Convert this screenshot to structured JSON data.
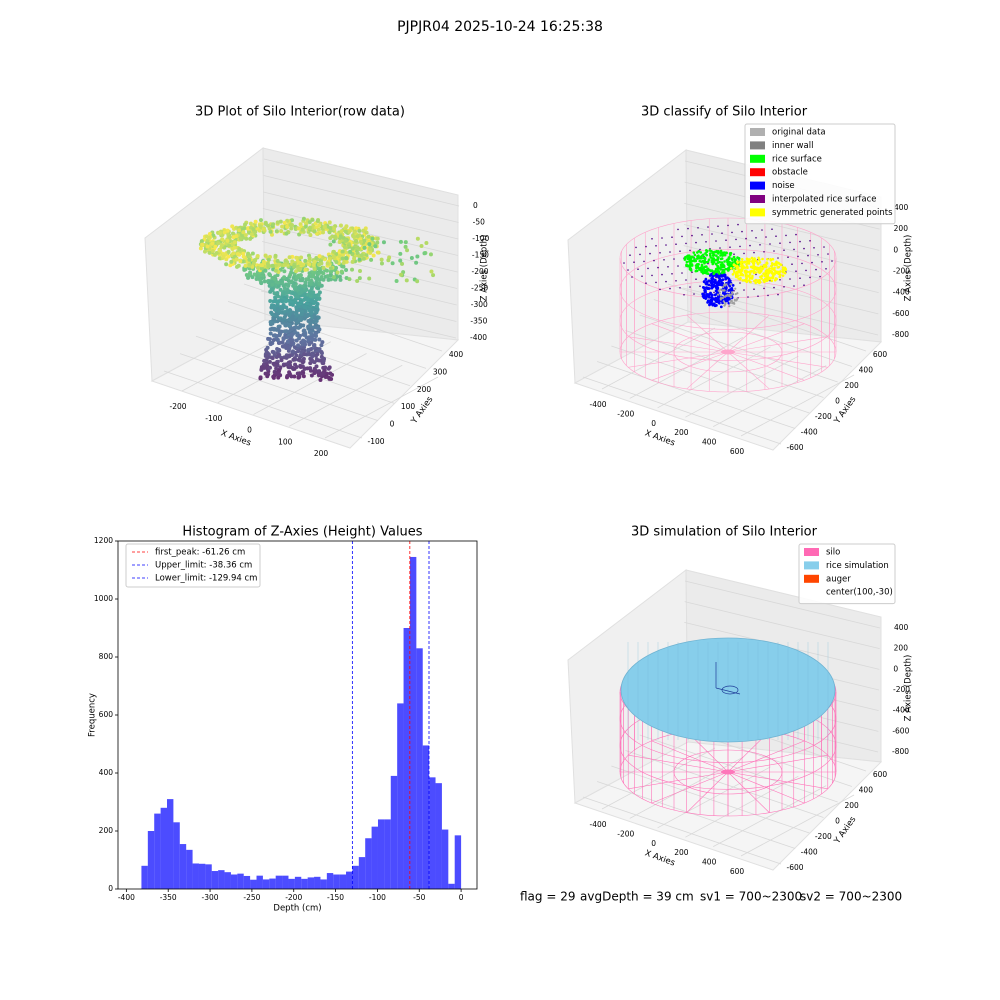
{
  "title": "PJPJR04 2025-10-24 16:25:38",
  "chart_data": [
    {
      "type": "scatter3d",
      "title": "3D Plot of Silo Interior(row data)",
      "xlabel": "X Axies",
      "ylabel": "Y Axies",
      "zlabel": "Z Axies (Depth)",
      "xticks": [
        -200,
        -100,
        0,
        100,
        200
      ],
      "yticks": [
        -100,
        0,
        100,
        200,
        300,
        400
      ],
      "zticks": [
        0,
        -50,
        -100,
        -150,
        -200,
        -250,
        -300,
        -350,
        -400
      ]
    },
    {
      "type": "scatter3d",
      "title": "3D classify of Silo Interior",
      "xlabel": "X Axies",
      "ylabel": "Y Axies",
      "zlabel": "Z Axies (Depth)",
      "xticks": [
        -400,
        -200,
        0,
        200,
        400,
        600
      ],
      "yticks": [
        -600,
        -400,
        -200,
        0,
        200,
        400,
        600
      ],
      "zticks": [
        400,
        200,
        0,
        -200,
        -400,
        -600,
        -800
      ],
      "legend": [
        {
          "label": "original data",
          "color": "#b0b0b0"
        },
        {
          "label": "inner wall",
          "color": "#808080"
        },
        {
          "label": "rice surface",
          "color": "#00ff00"
        },
        {
          "label": "obstacle",
          "color": "#ff0000"
        },
        {
          "label": "noise",
          "color": "#0000ff"
        },
        {
          "label": "interpolated rice surface",
          "color": "#800080"
        },
        {
          "label": "symmetric generated points",
          "color": "#ffff00"
        }
      ]
    },
    {
      "type": "histogram",
      "title": "Histogram of Z-Axies (Height) Values",
      "xlabel": "Depth (cm)",
      "ylabel": "Frequency",
      "color": "#0000ff",
      "bins": [
        -382,
        -374.36,
        -366.72,
        -359.08,
        -351.44,
        -343.8,
        -336.16,
        -328.52,
        -320.88,
        -313.24,
        -305.6,
        -297.96,
        -290.32,
        -282.68,
        -275.04,
        -267.4,
        -259.76,
        -252.12,
        -244.48,
        -236.84,
        -229.2,
        -221.56,
        -213.92,
        -206.28,
        -198.64,
        -191,
        -183.36,
        -175.72,
        -168.08,
        -160.44,
        -152.8,
        -145.16,
        -137.52,
        -129.88,
        -122.24,
        -114.6,
        -106.96,
        -99.32,
        -91.68,
        -84.04,
        -76.4,
        -68.76,
        -61.12,
        -53.48,
        -45.84,
        -38.2,
        -30.56,
        -22.92,
        -15.28,
        -7.64,
        0
      ],
      "counts": [
        80,
        200,
        260,
        280,
        310,
        230,
        155,
        135,
        88,
        87,
        85,
        62,
        65,
        58,
        50,
        53,
        45,
        32,
        46,
        33,
        36,
        46,
        46,
        35,
        42,
        35,
        40,
        42,
        33,
        55,
        50,
        50,
        60,
        80,
        110,
        175,
        215,
        240,
        240,
        390,
        640,
        900,
        1145,
        830,
        495,
        385,
        365,
        205,
        18,
        185
      ],
      "xlim": [
        -410,
        19
      ],
      "ylim": [
        0,
        1200
      ],
      "xticks": [
        -400,
        -350,
        -300,
        -250,
        -200,
        -150,
        -100,
        -50,
        0
      ],
      "yticks": [
        0,
        200,
        400,
        600,
        800,
        1000,
        1200
      ],
      "vlines": [
        {
          "label": "first_peak: -61.26 cm",
          "value": -61.26,
          "color": "#ff0000"
        },
        {
          "label": "Upper_limit: -38.36 cm",
          "value": -38.36,
          "color": "#0000ff"
        },
        {
          "label": "Lower_limit: -129.94 cm",
          "value": -129.94,
          "color": "#0000ff"
        }
      ]
    },
    {
      "type": "surface3d",
      "title": "3D simulation of Silo Interior",
      "xlabel": "X Axies",
      "ylabel": "Y Axies",
      "zlabel": "Z Axies (Depth)",
      "xticks": [
        -400,
        -200,
        0,
        200,
        400,
        600
      ],
      "yticks": [
        -600,
        -400,
        -200,
        0,
        200,
        400,
        600
      ],
      "zticks": [
        400,
        200,
        0,
        -200,
        -400,
        -600,
        -800
      ],
      "legend": [
        {
          "label": "silo",
          "color": "#ff69b4"
        },
        {
          "label": "rice simulation",
          "color": "#87ceeb"
        },
        {
          "label": "auger",
          "color": "#ff4500"
        },
        {
          "label": "center(100,-30)"
        }
      ]
    }
  ],
  "footer": [
    "flag = 29",
    "avgDepth = 39 cm",
    "sv1 = 700~2300",
    "sv2 = 700~2300"
  ]
}
